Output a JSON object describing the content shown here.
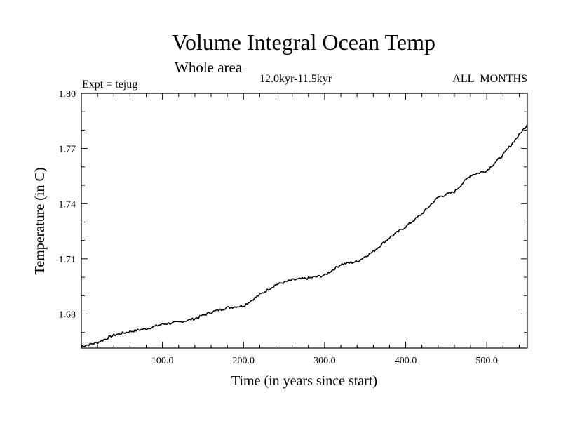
{
  "chart_data": {
    "type": "line",
    "title": "Volume Integral Ocean Temp",
    "subtitle": "Whole area",
    "period": "12.0kyr-11.5kyr",
    "experiment": "Expt = tejug",
    "months": "ALL_MONTHS",
    "xlabel": "Time (in years since start)",
    "ylabel": "Temperature (in C)",
    "xlim": [
      0,
      550
    ],
    "ylim": [
      1.6615,
      1.8
    ],
    "x_ticks": [
      100,
      200,
      300,
      400,
      500
    ],
    "x_tick_labels": [
      "100.0",
      "200.0",
      "300.0",
      "400.0",
      "500.0"
    ],
    "y_ticks": [
      1.68,
      1.71,
      1.74,
      1.77,
      1.8
    ],
    "y_tick_labels": [
      "1.68",
      "1.71",
      "1.74",
      "1.77",
      "1.80"
    ],
    "series": [
      {
        "name": "Volume Integral Ocean Temp",
        "color": "#000000",
        "x": [
          0,
          20,
          40,
          60,
          80,
          100,
          120,
          140,
          160,
          180,
          200,
          220,
          240,
          260,
          280,
          300,
          320,
          340,
          360,
          380,
          400,
          420,
          440,
          460,
          480,
          500,
          520,
          540,
          550
        ],
        "y": [
          1.6625,
          1.6645,
          1.6685,
          1.6705,
          1.672,
          1.6745,
          1.6755,
          1.6775,
          1.681,
          1.6835,
          1.6845,
          1.6905,
          1.696,
          1.6985,
          1.6995,
          1.701,
          1.707,
          1.7085,
          1.714,
          1.7215,
          1.7275,
          1.7345,
          1.7435,
          1.7465,
          1.7555,
          1.758,
          1.7665,
          1.7775,
          1.783
        ]
      }
    ]
  }
}
